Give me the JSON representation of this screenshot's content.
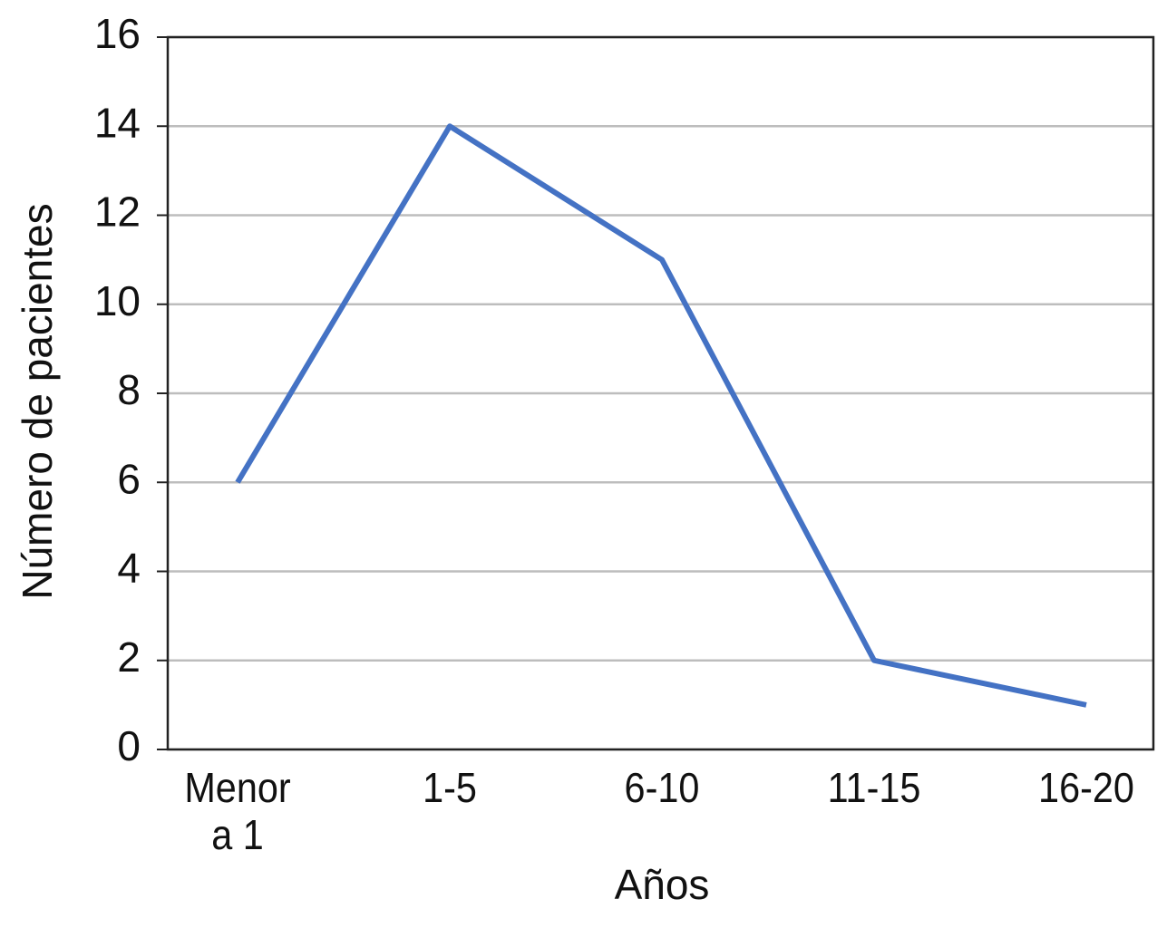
{
  "chart_data": {
    "type": "line",
    "x_label": "Años",
    "y_label": "Número de pacientes",
    "categories": [
      "Menor\na 1",
      "1-5",
      "6-10",
      "11-15",
      "16-20"
    ],
    "values": [
      6,
      14,
      11,
      2,
      1
    ],
    "color": "#4472c4",
    "ylim": [
      0,
      16
    ],
    "yticks": [
      0,
      2,
      4,
      6,
      8,
      10,
      12,
      14,
      16
    ],
    "grid": true
  }
}
